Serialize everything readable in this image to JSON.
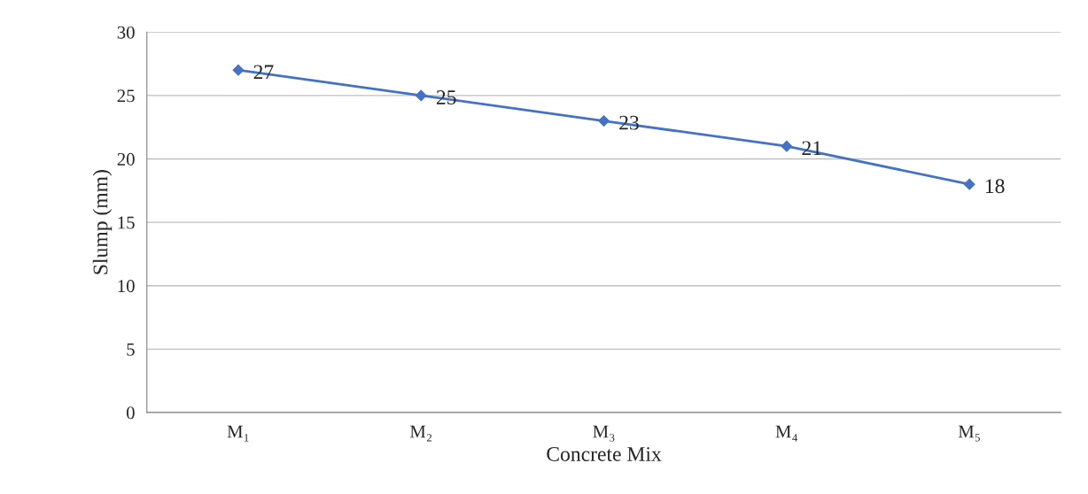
{
  "chart_data": {
    "type": "line",
    "xlabel": "Concrete Mix",
    "ylabel": "Slump (mm)",
    "categories": [
      "M₁",
      "M₂",
      "M₃",
      "M₄",
      "M₅"
    ],
    "series": [
      {
        "color": "#4472c4",
        "values": [
          27,
          25,
          23,
          21,
          18
        ]
      }
    ],
    "ylim": [
      0,
      30
    ],
    "yticks": [
      0,
      5,
      10,
      15,
      20,
      25,
      30
    ],
    "grid": "y",
    "legend": false,
    "marker": "diamond",
    "line_style": "solid",
    "data_labels": true
  }
}
